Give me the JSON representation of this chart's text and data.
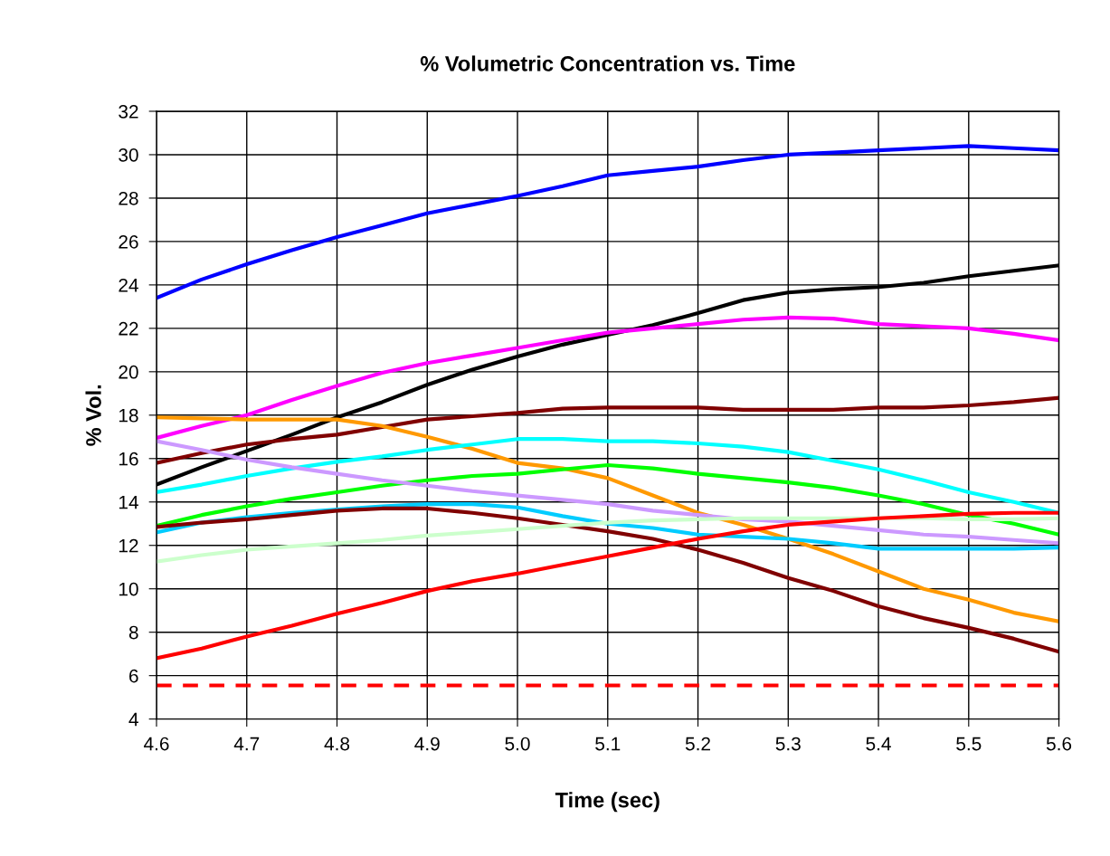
{
  "chart_data": {
    "type": "line",
    "title": "% Volumetric Concentration vs. Time",
    "xlabel": "Time (sec)",
    "ylabel": "% Vol.",
    "x": [
      4.6,
      4.65,
      4.7,
      4.75,
      4.8,
      4.85,
      4.9,
      4.95,
      5.0,
      5.05,
      5.1,
      5.15,
      5.2,
      5.25,
      5.3,
      5.35,
      5.4,
      5.45,
      5.5,
      5.55,
      5.6
    ],
    "series": [
      {
        "color": "#0000ff",
        "values": [
          23.4,
          24.25,
          24.95,
          25.6,
          26.2,
          26.75,
          27.3,
          27.7,
          28.1,
          28.55,
          29.05,
          29.25,
          29.45,
          29.75,
          30.0,
          30.1,
          30.2,
          30.3,
          30.4,
          30.3,
          30.2
        ]
      },
      {
        "color": "#000000",
        "values": [
          14.8,
          15.6,
          16.35,
          17.1,
          17.9,
          18.6,
          19.4,
          20.1,
          20.7,
          21.25,
          21.7,
          22.15,
          22.7,
          23.3,
          23.65,
          23.8,
          23.9,
          24.1,
          24.4,
          24.65,
          24.9
        ]
      },
      {
        "color": "#ff00ff",
        "values": [
          16.95,
          17.5,
          18.0,
          18.7,
          19.35,
          19.95,
          20.4,
          20.75,
          21.1,
          21.45,
          21.8,
          22.0,
          22.2,
          22.4,
          22.5,
          22.45,
          22.2,
          22.1,
          22.0,
          21.75,
          21.45
        ]
      },
      {
        "color": "#800000",
        "values": [
          15.8,
          16.25,
          16.65,
          16.9,
          17.1,
          17.45,
          17.8,
          17.95,
          18.1,
          18.3,
          18.35,
          18.35,
          18.35,
          18.25,
          18.25,
          18.25,
          18.35,
          18.35,
          18.45,
          18.6,
          18.8
        ]
      },
      {
        "color": "#ff9900",
        "values": [
          17.9,
          17.85,
          17.8,
          17.8,
          17.8,
          17.5,
          17.0,
          16.45,
          15.8,
          15.55,
          15.1,
          14.3,
          13.5,
          12.95,
          12.3,
          11.6,
          10.8,
          10.0,
          9.5,
          8.9,
          8.5
        ]
      },
      {
        "color": "#00ffff",
        "values": [
          14.45,
          14.8,
          15.2,
          15.55,
          15.85,
          16.1,
          16.4,
          16.65,
          16.9,
          16.9,
          16.8,
          16.8,
          16.7,
          16.55,
          16.3,
          15.9,
          15.5,
          15.0,
          14.45,
          14.0,
          13.5
        ]
      },
      {
        "color": "#00ff00",
        "values": [
          12.9,
          13.4,
          13.8,
          14.15,
          14.45,
          14.75,
          15.0,
          15.2,
          15.3,
          15.5,
          15.7,
          15.55,
          15.3,
          15.1,
          14.9,
          14.65,
          14.3,
          13.9,
          13.4,
          13.0,
          12.5
        ]
      },
      {
        "color": "#cc99ff",
        "values": [
          16.8,
          16.4,
          15.95,
          15.6,
          15.3,
          15.0,
          14.75,
          14.5,
          14.3,
          14.1,
          13.9,
          13.6,
          13.4,
          13.2,
          13.1,
          12.9,
          12.7,
          12.5,
          12.4,
          12.25,
          12.1
        ]
      },
      {
        "color": "#00ccff",
        "values": [
          12.6,
          13.05,
          13.3,
          13.5,
          13.65,
          13.8,
          13.9,
          13.9,
          13.75,
          13.35,
          13.0,
          12.8,
          12.5,
          12.4,
          12.3,
          12.1,
          11.85,
          11.85,
          11.85,
          11.85,
          11.9
        ]
      },
      {
        "color": "#800000",
        "values": [
          12.85,
          13.05,
          13.2,
          13.4,
          13.6,
          13.7,
          13.7,
          13.5,
          13.25,
          12.95,
          12.65,
          12.3,
          11.8,
          11.2,
          10.5,
          9.9,
          9.2,
          8.65,
          8.2,
          7.7,
          7.1
        ]
      },
      {
        "color": "#ccffcc",
        "values": [
          11.25,
          11.55,
          11.8,
          11.95,
          12.1,
          12.25,
          12.45,
          12.6,
          12.75,
          12.9,
          13.05,
          13.15,
          13.2,
          13.25,
          13.25,
          13.25,
          13.25,
          13.25,
          13.2,
          13.2,
          13.25
        ]
      },
      {
        "color": "#ff0000",
        "values": [
          6.8,
          7.25,
          7.8,
          8.3,
          8.85,
          9.35,
          9.9,
          10.35,
          10.7,
          11.1,
          11.5,
          11.9,
          12.3,
          12.65,
          12.95,
          13.1,
          13.25,
          13.35,
          13.45,
          13.5,
          13.5
        ]
      }
    ],
    "ref_lines": [
      {
        "axis": "y",
        "value": 5.55,
        "color": "#ff0000",
        "line_style": "dashed"
      }
    ],
    "xlim": [
      4.6,
      5.6
    ],
    "xticks": [
      {
        "value": 4.6,
        "label": "4.6"
      },
      {
        "value": 4.7,
        "label": "4.7"
      },
      {
        "value": 4.8,
        "label": "4.8"
      },
      {
        "value": 4.9,
        "label": "4.9"
      },
      {
        "value": 5.0,
        "label": "5.0"
      },
      {
        "value": 5.1,
        "label": "5.1"
      },
      {
        "value": 5.2,
        "label": "5.2"
      },
      {
        "value": 5.3,
        "label": "5.3"
      },
      {
        "value": 5.4,
        "label": "5.4"
      },
      {
        "value": 5.5,
        "label": "5.5"
      },
      {
        "value": 5.6,
        "label": "5.6"
      }
    ],
    "ylim": [
      4,
      32
    ],
    "yticks": [
      4,
      6,
      8,
      10,
      12,
      14,
      16,
      18,
      20,
      22,
      24,
      26,
      28,
      30,
      32
    ],
    "grid": true,
    "marker": "none",
    "line_style": "solid"
  }
}
